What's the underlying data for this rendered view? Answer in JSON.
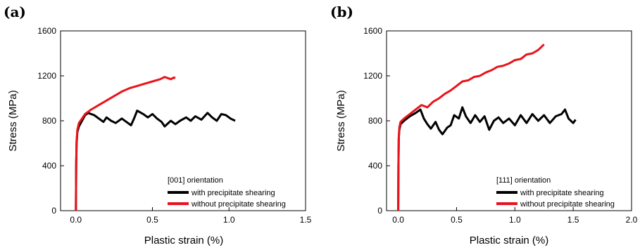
{
  "chart_data": [
    {
      "panel": "(a)",
      "type": "line",
      "xlabel": "Plastic strain (%)",
      "ylabel": "Stress (MPa)",
      "xlim": [
        -0.1,
        1.5
      ],
      "ylim": [
        0,
        1600
      ],
      "xticks": [
        "0.0",
        "0.5",
        "1.0",
        "1.5"
      ],
      "yticks": [
        "0",
        "400",
        "800",
        "1200",
        "1600"
      ],
      "legend_title": "[001] orientation",
      "legend_position": "bottom-right",
      "series": [
        {
          "name": "with precipitate shearing",
          "color": "#000000",
          "points": [
            [
              0.0,
              0
            ],
            [
              0.002,
              400
            ],
            [
              0.005,
              600
            ],
            [
              0.01,
              700
            ],
            [
              0.02,
              750
            ],
            [
              0.04,
              800
            ],
            [
              0.06,
              850
            ],
            [
              0.08,
              870
            ],
            [
              0.12,
              850
            ],
            [
              0.15,
              820
            ],
            [
              0.18,
              790
            ],
            [
              0.2,
              830
            ],
            [
              0.23,
              800
            ],
            [
              0.26,
              780
            ],
            [
              0.3,
              820
            ],
            [
              0.33,
              790
            ],
            [
              0.36,
              760
            ],
            [
              0.38,
              820
            ],
            [
              0.4,
              890
            ],
            [
              0.44,
              860
            ],
            [
              0.47,
              830
            ],
            [
              0.5,
              860
            ],
            [
              0.53,
              820
            ],
            [
              0.56,
              790
            ],
            [
              0.58,
              750
            ],
            [
              0.62,
              800
            ],
            [
              0.65,
              770
            ],
            [
              0.68,
              800
            ],
            [
              0.72,
              830
            ],
            [
              0.75,
              800
            ],
            [
              0.78,
              840
            ],
            [
              0.82,
              810
            ],
            [
              0.86,
              870
            ],
            [
              0.89,
              830
            ],
            [
              0.92,
              800
            ],
            [
              0.95,
              860
            ],
            [
              0.98,
              850
            ],
            [
              1.01,
              820
            ],
            [
              1.04,
              800
            ]
          ]
        },
        {
          "name": "without precipitate shearing",
          "color": "#e8141c",
          "points": [
            [
              0.0,
              0
            ],
            [
              0.002,
              400
            ],
            [
              0.005,
              620
            ],
            [
              0.01,
              720
            ],
            [
              0.02,
              780
            ],
            [
              0.04,
              820
            ],
            [
              0.06,
              860
            ],
            [
              0.08,
              880
            ],
            [
              0.1,
              900
            ],
            [
              0.15,
              940
            ],
            [
              0.2,
              980
            ],
            [
              0.25,
              1020
            ],
            [
              0.3,
              1060
            ],
            [
              0.35,
              1090
            ],
            [
              0.4,
              1110
            ],
            [
              0.45,
              1130
            ],
            [
              0.5,
              1150
            ],
            [
              0.55,
              1170
            ],
            [
              0.58,
              1190
            ],
            [
              0.6,
              1180
            ],
            [
              0.62,
              1170
            ],
            [
              0.64,
              1185
            ],
            [
              0.65,
              1180
            ]
          ]
        }
      ]
    },
    {
      "panel": "(b)",
      "type": "line",
      "xlabel": "Plastic strain (%)",
      "ylabel": "Stress (MPa)",
      "xlim": [
        -0.1,
        2.0
      ],
      "ylim": [
        0,
        1600
      ],
      "xticks": [
        "0.0",
        "0.5",
        "1.0",
        "1.5",
        "2.0"
      ],
      "yticks": [
        "0",
        "400",
        "800",
        "1200",
        "1600"
      ],
      "legend_title": "[111] orientation",
      "legend_position": "bottom-right",
      "series": [
        {
          "name": "with precipitate shearing",
          "color": "#000000",
          "points": [
            [
              0.0,
              0
            ],
            [
              0.002,
              400
            ],
            [
              0.005,
              650
            ],
            [
              0.01,
              720
            ],
            [
              0.02,
              770
            ],
            [
              0.05,
              800
            ],
            [
              0.1,
              840
            ],
            [
              0.15,
              870
            ],
            [
              0.19,
              900
            ],
            [
              0.22,
              820
            ],
            [
              0.25,
              770
            ],
            [
              0.28,
              730
            ],
            [
              0.32,
              790
            ],
            [
              0.35,
              720
            ],
            [
              0.38,
              680
            ],
            [
              0.42,
              740
            ],
            [
              0.45,
              760
            ],
            [
              0.48,
              850
            ],
            [
              0.52,
              820
            ],
            [
              0.55,
              920
            ],
            [
              0.58,
              840
            ],
            [
              0.62,
              780
            ],
            [
              0.66,
              850
            ],
            [
              0.7,
              790
            ],
            [
              0.74,
              840
            ],
            [
              0.78,
              720
            ],
            [
              0.82,
              800
            ],
            [
              0.86,
              830
            ],
            [
              0.9,
              780
            ],
            [
              0.95,
              820
            ],
            [
              1.0,
              760
            ],
            [
              1.05,
              850
            ],
            [
              1.1,
              780
            ],
            [
              1.15,
              860
            ],
            [
              1.2,
              800
            ],
            [
              1.25,
              850
            ],
            [
              1.3,
              780
            ],
            [
              1.35,
              840
            ],
            [
              1.4,
              860
            ],
            [
              1.43,
              900
            ],
            [
              1.46,
              820
            ],
            [
              1.5,
              780
            ],
            [
              1.52,
              810
            ]
          ]
        },
        {
          "name": "without precipitate shearing",
          "color": "#e8141c",
          "points": [
            [
              0.0,
              0
            ],
            [
              0.002,
              400
            ],
            [
              0.005,
              650
            ],
            [
              0.01,
              740
            ],
            [
              0.02,
              790
            ],
            [
              0.05,
              820
            ],
            [
              0.1,
              860
            ],
            [
              0.15,
              900
            ],
            [
              0.2,
              940
            ],
            [
              0.25,
              920
            ],
            [
              0.3,
              970
            ],
            [
              0.35,
              1000
            ],
            [
              0.4,
              1040
            ],
            [
              0.45,
              1070
            ],
            [
              0.5,
              1110
            ],
            [
              0.55,
              1150
            ],
            [
              0.6,
              1160
            ],
            [
              0.65,
              1190
            ],
            [
              0.7,
              1200
            ],
            [
              0.75,
              1230
            ],
            [
              0.8,
              1250
            ],
            [
              0.85,
              1280
            ],
            [
              0.9,
              1290
            ],
            [
              0.95,
              1310
            ],
            [
              1.0,
              1340
            ],
            [
              1.05,
              1350
            ],
            [
              1.1,
              1390
            ],
            [
              1.15,
              1400
            ],
            [
              1.2,
              1430
            ],
            [
              1.25,
              1480
            ]
          ]
        }
      ]
    }
  ]
}
